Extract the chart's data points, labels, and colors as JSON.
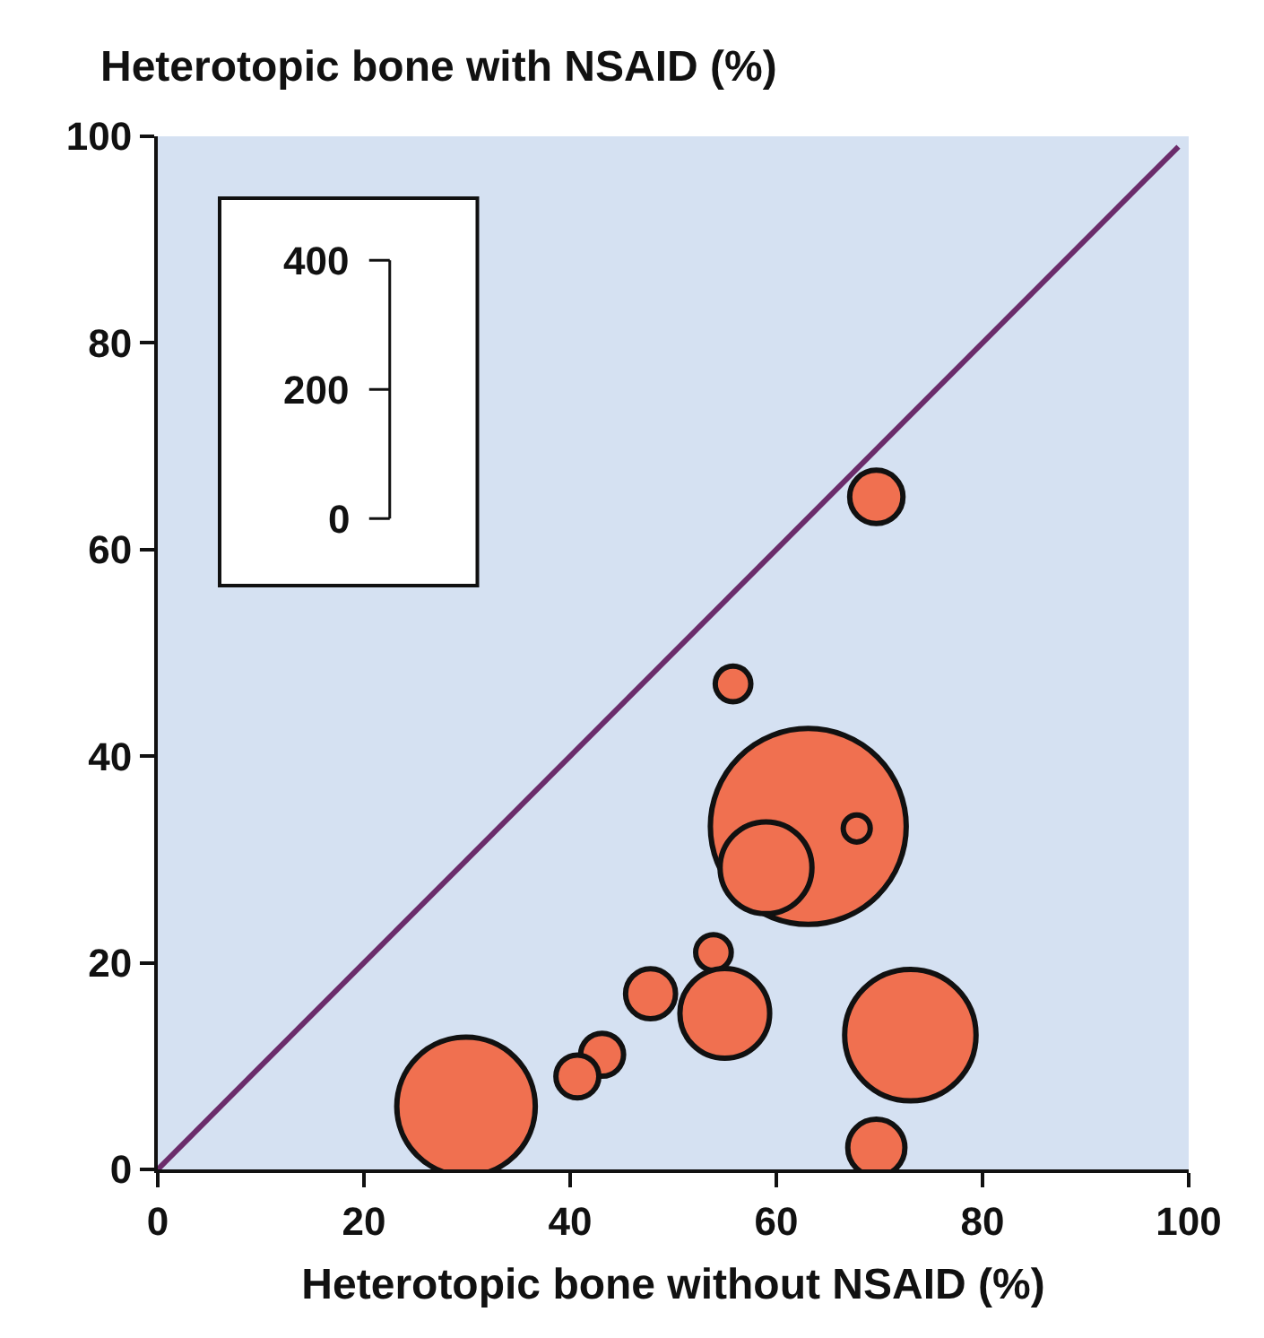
{
  "chart_data": {
    "type": "bubble",
    "ylabel": "Heterotopic bone with NSAID (%)",
    "xlabel": "Heterotopic bone without NSAID (%)",
    "series": [
      {
        "color": "#f07050",
        "x": [
          69.7,
          55.8,
          63.1,
          67.8,
          59,
          53.9,
          47.8,
          55,
          73,
          43.1,
          40.7,
          29.9,
          69.7
        ],
        "values": [
          65.1,
          47,
          33.2,
          33,
          29.2,
          21,
          17,
          15.1,
          13,
          11.1,
          9,
          6.1,
          2.1
        ],
        "sizes": [
          0.074,
          0.033,
          1,
          0.019,
          0.22,
          0.033,
          0.065,
          0.21,
          0.45,
          0.048,
          0.048,
          0.5,
          0.085
        ]
      },
      {
        "type": "line",
        "color": "#6b2c6b",
        "x": [
          0,
          99
        ],
        "values": [
          0,
          99
        ]
      }
    ],
    "annotations": [
      "400",
      "200",
      "0"
    ],
    "xlim": [
      0,
      100
    ],
    "ylim": [
      0,
      100
    ],
    "xticks": [
      0,
      20,
      40,
      60,
      80,
      100
    ],
    "yticks": [
      0,
      20,
      40,
      60,
      80,
      100
    ],
    "grid": false,
    "line_style": "solid"
  }
}
